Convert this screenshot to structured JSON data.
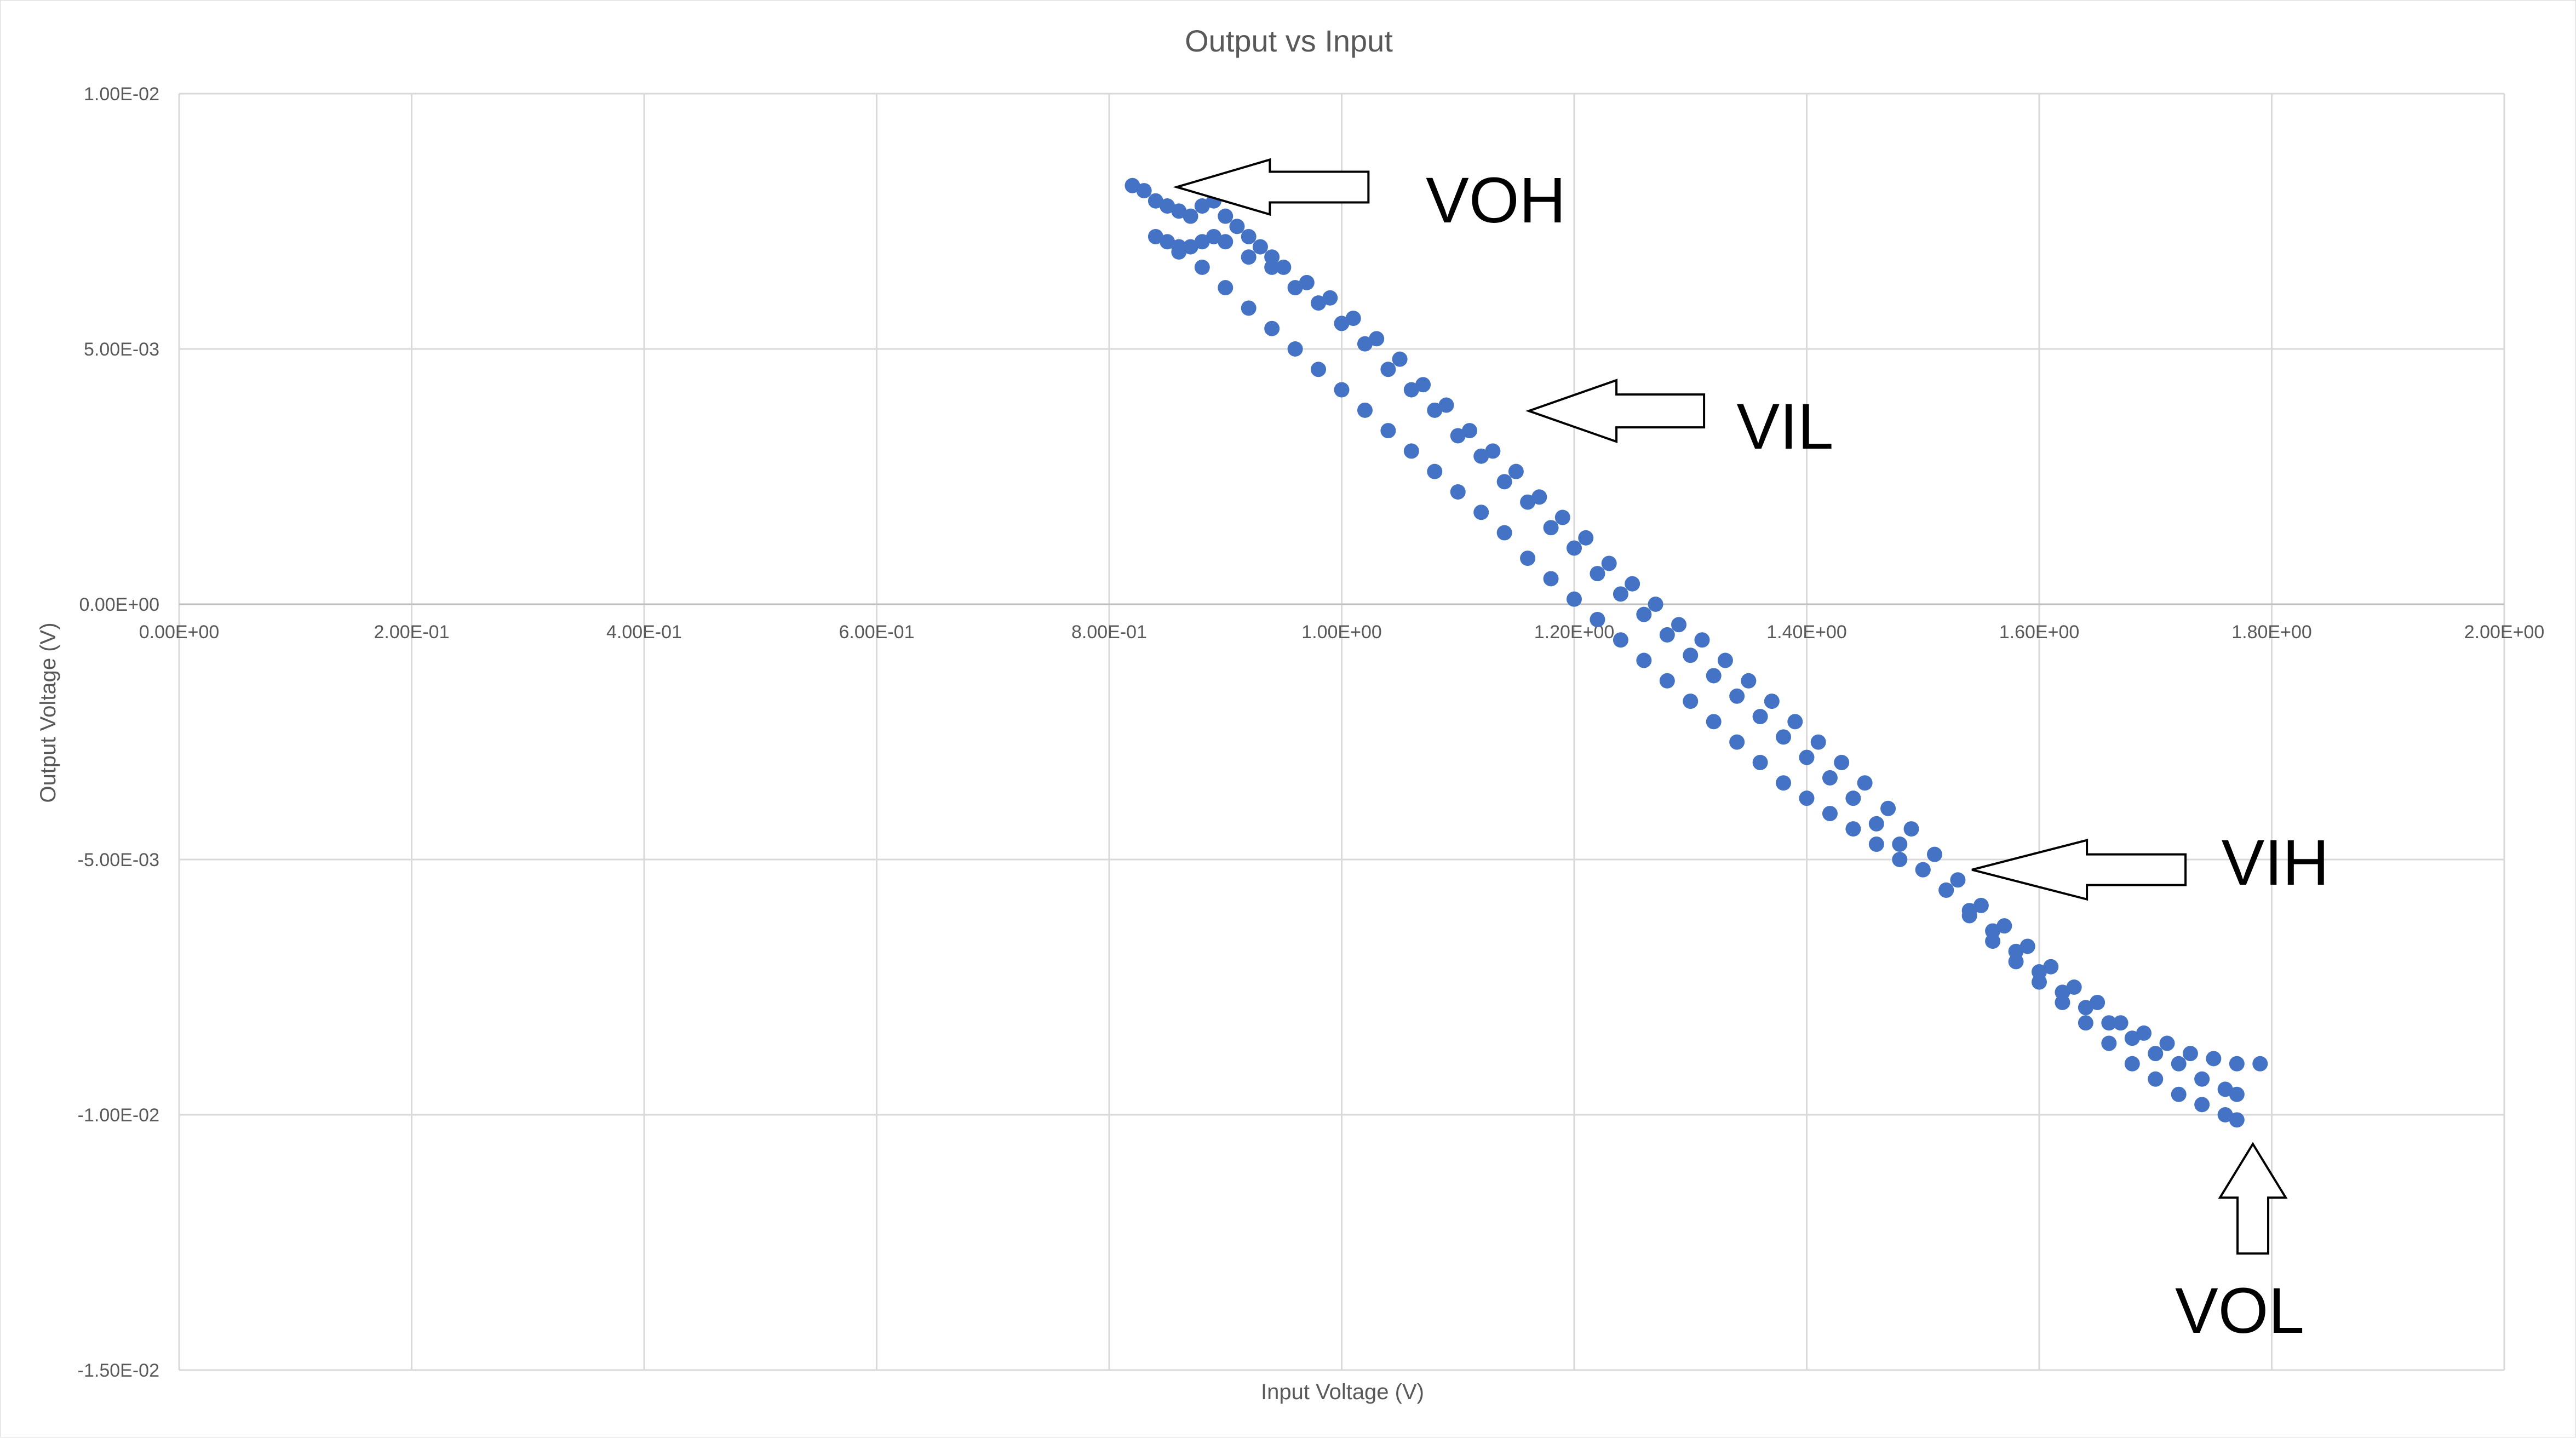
{
  "chart_data": {
    "type": "scatter",
    "title": "Output vs Input",
    "xlabel": "Input Voltage (V)",
    "ylabel": "Output Voltage (V)",
    "xlim": [
      0,
      2
    ],
    "ylim": [
      -0.015,
      0.01
    ],
    "grid": true,
    "legend": "none",
    "series_color": "#4472c4",
    "x_ticks": [
      {
        "value": 0.0,
        "label": "0.00E+00"
      },
      {
        "value": 0.2,
        "label": "2.00E-01"
      },
      {
        "value": 0.4,
        "label": "4.00E-01"
      },
      {
        "value": 0.6,
        "label": "6.00E-01"
      },
      {
        "value": 0.8,
        "label": "8.00E-01"
      },
      {
        "value": 1.0,
        "label": "1.00E+00"
      },
      {
        "value": 1.2,
        "label": "1.20E+00"
      },
      {
        "value": 1.4,
        "label": "1.40E+00"
      },
      {
        "value": 1.6,
        "label": "1.60E+00"
      },
      {
        "value": 1.8,
        "label": "1.80E+00"
      },
      {
        "value": 2.0,
        "label": "2.00E+00"
      }
    ],
    "y_ticks": [
      {
        "value": 0.01,
        "label": "1.00E-02"
      },
      {
        "value": 0.005,
        "label": "5.00E-03"
      },
      {
        "value": 0.0,
        "label": "0.00E+00"
      },
      {
        "value": -0.005,
        "label": "-5.00E-03"
      },
      {
        "value": -0.01,
        "label": "-1.00E-02"
      },
      {
        "value": -0.015,
        "label": "-1.50E-02"
      }
    ],
    "series": [
      {
        "points": [
          [
            0.82,
            0.0082
          ],
          [
            0.83,
            0.0081
          ],
          [
            0.84,
            0.0079
          ],
          [
            0.85,
            0.0078
          ],
          [
            0.86,
            0.0077
          ],
          [
            0.87,
            0.0076
          ],
          [
            0.88,
            0.0078
          ],
          [
            0.89,
            0.0079
          ],
          [
            0.9,
            0.0076
          ],
          [
            0.91,
            0.0074
          ],
          [
            0.92,
            0.0072
          ],
          [
            0.93,
            0.007
          ],
          [
            0.94,
            0.0068
          ],
          [
            0.95,
            0.0066
          ],
          [
            0.97,
            0.0063
          ],
          [
            0.99,
            0.006
          ],
          [
            1.01,
            0.0056
          ],
          [
            1.03,
            0.0052
          ],
          [
            1.05,
            0.0048
          ],
          [
            1.07,
            0.0043
          ],
          [
            1.09,
            0.0039
          ],
          [
            1.11,
            0.0034
          ],
          [
            1.13,
            0.003
          ],
          [
            1.15,
            0.0026
          ],
          [
            1.17,
            0.0021
          ],
          [
            1.19,
            0.0017
          ],
          [
            1.21,
            0.0013
          ],
          [
            1.23,
            0.0008
          ],
          [
            1.25,
            0.0004
          ],
          [
            1.27,
            0.0
          ],
          [
            1.29,
            -0.0004
          ],
          [
            1.31,
            -0.0007
          ],
          [
            1.33,
            -0.0011
          ],
          [
            1.35,
            -0.0015
          ],
          [
            1.37,
            -0.0019
          ],
          [
            1.39,
            -0.0023
          ],
          [
            1.41,
            -0.0027
          ],
          [
            1.43,
            -0.0031
          ],
          [
            1.45,
            -0.0035
          ],
          [
            1.47,
            -0.004
          ],
          [
            1.49,
            -0.0044
          ],
          [
            1.51,
            -0.0049
          ],
          [
            1.53,
            -0.0054
          ],
          [
            1.55,
            -0.0059
          ],
          [
            1.57,
            -0.0063
          ],
          [
            1.59,
            -0.0067
          ],
          [
            1.61,
            -0.0071
          ],
          [
            1.63,
            -0.0075
          ],
          [
            1.65,
            -0.0078
          ],
          [
            1.67,
            -0.0082
          ],
          [
            1.69,
            -0.0084
          ],
          [
            1.71,
            -0.0086
          ],
          [
            1.73,
            -0.0088
          ],
          [
            1.75,
            -0.0089
          ],
          [
            1.77,
            -0.009
          ],
          [
            1.79,
            -0.009
          ],
          [
            0.84,
            0.0072
          ],
          [
            0.85,
            0.0071
          ],
          [
            0.86,
            0.007
          ],
          [
            0.87,
            0.007
          ],
          [
            0.88,
            0.0071
          ],
          [
            0.89,
            0.0072
          ],
          [
            0.9,
            0.0071
          ],
          [
            0.92,
            0.0068
          ],
          [
            0.94,
            0.0066
          ],
          [
            0.96,
            0.0062
          ],
          [
            0.98,
            0.0059
          ],
          [
            1.0,
            0.0055
          ],
          [
            1.02,
            0.0051
          ],
          [
            1.04,
            0.0046
          ],
          [
            1.06,
            0.0042
          ],
          [
            1.08,
            0.0038
          ],
          [
            1.1,
            0.0033
          ],
          [
            1.12,
            0.0029
          ],
          [
            1.14,
            0.0024
          ],
          [
            1.16,
            0.002
          ],
          [
            1.18,
            0.0015
          ],
          [
            1.2,
            0.0011
          ],
          [
            1.22,
            0.0006
          ],
          [
            1.24,
            0.0002
          ],
          [
            1.26,
            -0.0002
          ],
          [
            1.28,
            -0.0006
          ],
          [
            1.3,
            -0.001
          ],
          [
            1.32,
            -0.0014
          ],
          [
            1.34,
            -0.0018
          ],
          [
            1.36,
            -0.0022
          ],
          [
            1.38,
            -0.0026
          ],
          [
            1.4,
            -0.003
          ],
          [
            1.42,
            -0.0034
          ],
          [
            1.44,
            -0.0038
          ],
          [
            1.46,
            -0.0043
          ],
          [
            1.48,
            -0.0047
          ],
          [
            1.5,
            -0.0052
          ],
          [
            1.52,
            -0.0056
          ],
          [
            1.54,
            -0.006
          ],
          [
            1.56,
            -0.0064
          ],
          [
            1.58,
            -0.0068
          ],
          [
            1.6,
            -0.0072
          ],
          [
            1.62,
            -0.0076
          ],
          [
            1.64,
            -0.0079
          ],
          [
            1.66,
            -0.0082
          ],
          [
            1.68,
            -0.0085
          ],
          [
            1.7,
            -0.0088
          ],
          [
            1.72,
            -0.009
          ],
          [
            1.74,
            -0.0093
          ],
          [
            1.76,
            -0.0095
          ],
          [
            1.77,
            -0.0096
          ],
          [
            0.86,
            0.0069
          ],
          [
            0.88,
            0.0066
          ],
          [
            0.9,
            0.0062
          ],
          [
            0.92,
            0.0058
          ],
          [
            0.94,
            0.0054
          ],
          [
            0.96,
            0.005
          ],
          [
            0.98,
            0.0046
          ],
          [
            1.0,
            0.0042
          ],
          [
            1.02,
            0.0038
          ],
          [
            1.04,
            0.0034
          ],
          [
            1.06,
            0.003
          ],
          [
            1.08,
            0.0026
          ],
          [
            1.1,
            0.0022
          ],
          [
            1.12,
            0.0018
          ],
          [
            1.14,
            0.0014
          ],
          [
            1.16,
            0.0009
          ],
          [
            1.18,
            0.0005
          ],
          [
            1.2,
            0.0001
          ],
          [
            1.22,
            -0.0003
          ],
          [
            1.24,
            -0.0007
          ],
          [
            1.26,
            -0.0011
          ],
          [
            1.28,
            -0.0015
          ],
          [
            1.3,
            -0.0019
          ],
          [
            1.32,
            -0.0023
          ],
          [
            1.34,
            -0.0027
          ],
          [
            1.36,
            -0.0031
          ],
          [
            1.38,
            -0.0035
          ],
          [
            1.4,
            -0.0038
          ],
          [
            1.42,
            -0.0041
          ],
          [
            1.44,
            -0.0044
          ],
          [
            1.46,
            -0.0047
          ],
          [
            1.48,
            -0.005
          ],
          [
            1.5,
            -0.0052
          ],
          [
            1.52,
            -0.0056
          ],
          [
            1.54,
            -0.0061
          ],
          [
            1.56,
            -0.0066
          ],
          [
            1.58,
            -0.007
          ],
          [
            1.6,
            -0.0074
          ],
          [
            1.62,
            -0.0078
          ],
          [
            1.64,
            -0.0082
          ],
          [
            1.66,
            -0.0086
          ],
          [
            1.68,
            -0.009
          ],
          [
            1.7,
            -0.0093
          ],
          [
            1.72,
            -0.0096
          ],
          [
            1.74,
            -0.0098
          ],
          [
            1.76,
            -0.01
          ],
          [
            1.77,
            -0.0101
          ]
        ]
      }
    ],
    "annotations": [
      {
        "label": "VOH",
        "arrow_points_to": [
          0.86,
          0.0083
        ]
      },
      {
        "label": "VIL",
        "arrow_points_to": [
          1.16,
          0.0034
        ]
      },
      {
        "label": "VIH",
        "arrow_points_to": [
          1.56,
          -0.0052
        ]
      },
      {
        "label": "VOL",
        "arrow_points_to": [
          1.78,
          -0.0107
        ]
      }
    ]
  }
}
